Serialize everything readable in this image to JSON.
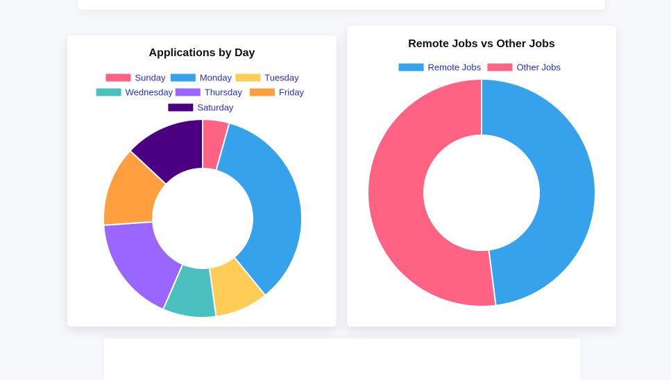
{
  "chart_data": [
    {
      "type": "pie",
      "variant": "doughnut",
      "title": "Applications by Day",
      "categories": [
        "Sunday",
        "Monday",
        "Tuesday",
        "Wednesday",
        "Thursday",
        "Friday",
        "Saturday"
      ],
      "values": [
        1,
        8,
        2,
        2,
        4,
        3,
        3
      ],
      "colors": [
        "#ff6384",
        "#36a2eb",
        "#ffcd56",
        "#4bc0c0",
        "#9966ff",
        "#ff9f40",
        "#4b0082"
      ],
      "legend": "top"
    },
    {
      "type": "pie",
      "variant": "doughnut",
      "title": "Remote Jobs vs Other Jobs",
      "categories": [
        "Remote Jobs",
        "Other Jobs"
      ],
      "values": [
        48,
        52
      ],
      "colors": [
        "#36a2eb",
        "#ff6384"
      ],
      "legend": "top"
    }
  ]
}
